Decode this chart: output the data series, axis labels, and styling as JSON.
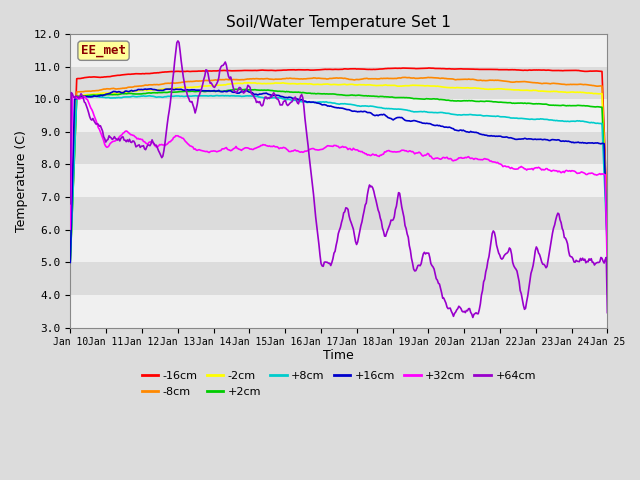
{
  "title": "Soil/Water Temperature Set 1",
  "xlabel": "Time",
  "ylabel": "Temperature (C)",
  "ylim": [
    3.0,
    12.0
  ],
  "yticks": [
    3.0,
    4.0,
    5.0,
    6.0,
    7.0,
    8.0,
    9.0,
    10.0,
    11.0,
    12.0
  ],
  "x_labels": [
    "Jan 10",
    "Jan 11",
    "Jan 12",
    "Jan 13",
    "Jan 14",
    "Jan 15",
    "Jan 16",
    "Jan 17",
    "Jan 18",
    "Jan 19",
    "Jan 20",
    "Jan 21",
    "Jan 22",
    "Jan 23",
    "Jan 24",
    "Jan 25"
  ],
  "annotation_text": "EE_met",
  "annotation_color": "#8B0000",
  "annotation_bg": "#FFFF99",
  "series": [
    {
      "label": "-16cm",
      "color": "#FF0000"
    },
    {
      "label": "-8cm",
      "color": "#FF8800"
    },
    {
      "label": "-2cm",
      "color": "#FFFF00"
    },
    {
      "label": "+2cm",
      "color": "#00CC00"
    },
    {
      "label": "+8cm",
      "color": "#00CCCC"
    },
    {
      "label": "+16cm",
      "color": "#0000CC"
    },
    {
      "label": "+32cm",
      "color": "#FF00FF"
    },
    {
      "label": "+64cm",
      "color": "#9900CC"
    }
  ],
  "background_color": "#DCDCDC",
  "plot_bg_light": "#F0F0F0",
  "plot_bg_dark": "#DCDCDC",
  "grid_color": "#FFFFFF",
  "n_points": 500,
  "legend_row1": [
    "-16cm",
    "-8cm",
    "-2cm",
    "+2cm",
    "+8cm",
    "+16cm"
  ],
  "legend_row2": [
    "+32cm",
    "+64cm"
  ]
}
